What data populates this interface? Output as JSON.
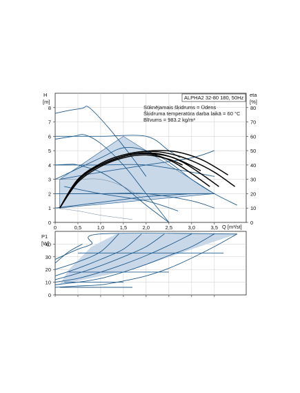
{
  "chart_data": [
    {
      "type": "line",
      "pump_label": "ALPHA2 32-80 180, 50Hz",
      "info_lines": [
        "Sūknējamais šķidrums = Ūdens",
        "Šķidruma temperatūra darba laikā = 60 °C",
        "Blīvums = 983.2 kg/m³"
      ],
      "xlabel": "Q [m³/st]",
      "ylabel_left": [
        "H",
        "[m]"
      ],
      "ylabel_right": [
        "eta",
        "[%]"
      ],
      "xlim": [
        0,
        4.2
      ],
      "ylim": [
        0,
        9
      ],
      "y2lim": [
        0,
        90
      ],
      "x_ticks": [
        0,
        0.5,
        1.0,
        1.5,
        2.0,
        2.5,
        3.0,
        3.5
      ],
      "x_tick_labels": [
        "0",
        "0,5",
        "1,0",
        "1,5",
        "2,0",
        "2,5",
        "3,0",
        "3,5"
      ],
      "y_ticks": [
        0,
        1,
        2,
        3,
        4,
        5,
        6,
        7,
        8
      ],
      "y_tick_labels": [
        "0",
        "1",
        "2",
        "3",
        "4",
        "5",
        "6",
        "7",
        "8"
      ],
      "y2_ticks": [
        0,
        10,
        20,
        30,
        40,
        50,
        60,
        70,
        80
      ],
      "y2_tick_labels": [
        "0",
        "10",
        "20",
        "30",
        "40",
        "50",
        "60",
        "70",
        "80"
      ],
      "grid": true,
      "operating_area": [
        [
          0.1,
          1.0
        ],
        [
          0.1,
          3.0
        ],
        [
          1.5,
          6.0
        ],
        [
          3.5,
          2.0
        ],
        [
          0.1,
          1.0
        ]
      ],
      "head_curves": [
        {
          "x": [
            0,
            0.3,
            0.6,
            0.75,
            1.2,
            1.7,
            2.0
          ],
          "y": [
            7.6,
            7.8,
            7.95,
            8.0,
            6.5,
            4.5,
            3.2
          ]
        },
        {
          "x": [
            0,
            0.4,
            0.65,
            1.0,
            1.5,
            2.0,
            2.5
          ],
          "y": [
            5.8,
            6.0,
            6.1,
            5.5,
            4.0,
            2.0,
            0
          ]
        },
        {
          "x": [
            0,
            0.3,
            0.5,
            1.0,
            1.5,
            2.0,
            2.5
          ],
          "y": [
            4.0,
            4.05,
            4.0,
            3.5,
            2.5,
            1.2,
            0
          ]
        },
        {
          "x": [
            0,
            1.0,
            2.0,
            2.5,
            2.75
          ],
          "y": [
            6.0,
            6.0,
            6.0,
            5.0,
            4.5
          ]
        },
        {
          "x": [
            0,
            1.0,
            2.0,
            3.0,
            3.5
          ],
          "y": [
            4.0,
            4.0,
            4.0,
            3.5,
            3.2
          ]
        },
        {
          "x": [
            0,
            1.0,
            2.0,
            3.0,
            3.5
          ],
          "y": [
            2.0,
            2.0,
            2.0,
            2.0,
            2.0
          ]
        },
        {
          "x": [
            0,
            1.0,
            1.5,
            2.0,
            2.5,
            3.0,
            3.5,
            4.0
          ],
          "y": [
            3.0,
            4.5,
            5.2,
            5.0,
            4.2,
            3.0,
            2.0,
            1.2
          ]
        },
        {
          "x": [
            0,
            0.5,
            1.0,
            1.5,
            2.0,
            2.5,
            3.0,
            3.5
          ],
          "y": [
            1.0,
            1.2,
            1.4,
            1.6,
            1.8,
            1.9,
            2.0,
            2.0
          ]
        },
        {
          "x": [
            0.1,
            1.0,
            2.0,
            3.0,
            3.5
          ],
          "y": [
            3.0,
            3.5,
            4.0,
            4.5,
            5.0
          ]
        },
        {
          "x": [
            0.2,
            1.0,
            2.0,
            2.7
          ],
          "y": [
            2.5,
            2.0,
            1.5,
            0.8
          ]
        },
        {
          "x": [
            0.3,
            1.0,
            2.0,
            3.0,
            3.5
          ],
          "y": [
            2.0,
            2.0,
            2.0,
            1.5,
            1.0
          ]
        }
      ],
      "thin_curves": [
        {
          "x": [
            0,
            0.5,
            1.0,
            1.7
          ],
          "y": [
            1.0,
            0.8,
            0.5,
            0.2
          ]
        },
        {
          "x": [
            0,
            0.5,
            1.0,
            1.5,
            2.0
          ],
          "y": [
            3.0,
            3.0,
            3.0,
            2.5,
            1.5
          ]
        }
      ],
      "eta_curves": [
        {
          "x": [
            0.1,
            0.5,
            1.0,
            1.5,
            1.85,
            2.2,
            2.6,
            3.0,
            3.4
          ],
          "y": [
            10,
            30,
            40,
            46,
            48,
            47,
            42,
            34,
            25
          ]
        },
        {
          "x": [
            0.1,
            0.5,
            1.0,
            1.5,
            1.95,
            2.4,
            2.8,
            3.2,
            3.6
          ],
          "y": [
            10,
            30,
            40,
            46,
            48.5,
            47,
            42,
            34,
            25
          ]
        },
        {
          "x": [
            0.1,
            0.5,
            1.0,
            1.5,
            2.0,
            2.5,
            3.0,
            3.5,
            3.95
          ],
          "y": [
            10,
            30,
            41,
            47,
            49.5,
            48,
            43,
            35,
            25
          ]
        },
        {
          "x": [
            0.1,
            0.5,
            1.0,
            1.5,
            2.15,
            2.7,
            3.2,
            3.6,
            3.8
          ],
          "y": [
            10,
            29,
            41,
            47,
            50,
            49,
            44,
            37,
            33
          ]
        },
        {
          "x": [
            0.1,
            0.5,
            1.0,
            1.5,
            2.0,
            2.5,
            2.9,
            3.2
          ],
          "y": [
            10,
            29,
            40,
            46,
            48,
            46,
            41,
            36
          ]
        },
        {
          "x": [
            0.1,
            0.5,
            1.0,
            1.5,
            2.0,
            2.5,
            2.8
          ],
          "y": [
            10,
            28,
            39,
            45,
            47,
            44,
            40
          ]
        }
      ]
    },
    {
      "type": "line",
      "xlabel": "",
      "ylabel": [
        "P1",
        "[W]"
      ],
      "xlim": [
        0,
        4.2
      ],
      "ylim": [
        0,
        50
      ],
      "y_ticks": [
        0,
        10,
        20,
        30,
        40
      ],
      "y_tick_labels": [
        "0",
        "10",
        "20",
        "30",
        "40"
      ],
      "grid": true,
      "operating_area": [
        [
          0.1,
          8
        ],
        [
          0.3,
          20
        ],
        [
          0.8,
          38
        ],
        [
          1.35,
          48
        ],
        [
          4.0,
          48
        ],
        [
          3.5,
          42
        ],
        [
          1.7,
          20
        ],
        [
          0.1,
          8
        ]
      ],
      "power_curves": [
        {
          "x": [
            0,
            0.5,
            0.8,
            1.0,
            4.0
          ],
          "y": [
            28,
            36,
            40,
            48,
            48
          ]
        },
        {
          "x": [
            0,
            0.5,
            1.0,
            1.5,
            2.0,
            2.5,
            3.0,
            3.5,
            4.0
          ],
          "y": [
            6,
            7,
            8,
            11,
            15,
            21,
            29,
            38,
            48
          ]
        },
        {
          "x": [
            0,
            0.5,
            1.0,
            1.5,
            2.0,
            2.5,
            3.0,
            3.5
          ],
          "y": [
            8,
            10,
            13,
            18,
            24,
            31,
            38,
            48
          ]
        },
        {
          "x": [
            0,
            0.5,
            1.0,
            1.5,
            2.0,
            2.5,
            3.0
          ],
          "y": [
            10,
            13,
            18,
            24,
            31,
            39,
            48
          ]
        },
        {
          "x": [
            0,
            0.5,
            1.0,
            1.5,
            2.0,
            2.4
          ],
          "y": [
            12,
            17,
            23,
            30,
            38,
            48
          ]
        },
        {
          "x": [
            0,
            0.5,
            1.0,
            1.5,
            1.9
          ],
          "y": [
            15,
            21,
            28,
            36,
            48
          ]
        },
        {
          "x": [
            0,
            0.5,
            1.0,
            1.4
          ],
          "y": [
            20,
            26,
            34,
            48
          ]
        },
        {
          "x": [
            0,
            0.3,
            0.6
          ],
          "y": [
            25,
            34,
            40
          ]
        },
        {
          "x": [
            0.5,
            1.0,
            2.0,
            3.0,
            3.7
          ],
          "y": [
            33,
            33,
            33,
            33,
            33
          ]
        },
        {
          "x": [
            0.3,
            1.0,
            2.0,
            2.5
          ],
          "y": [
            18,
            18,
            18,
            18
          ]
        },
        {
          "x": [
            0.2,
            1.0,
            1.5
          ],
          "y": [
            10,
            10,
            10
          ]
        },
        {
          "x": [
            0.1,
            1.0,
            1.7
          ],
          "y": [
            6,
            6,
            6
          ]
        }
      ]
    }
  ]
}
